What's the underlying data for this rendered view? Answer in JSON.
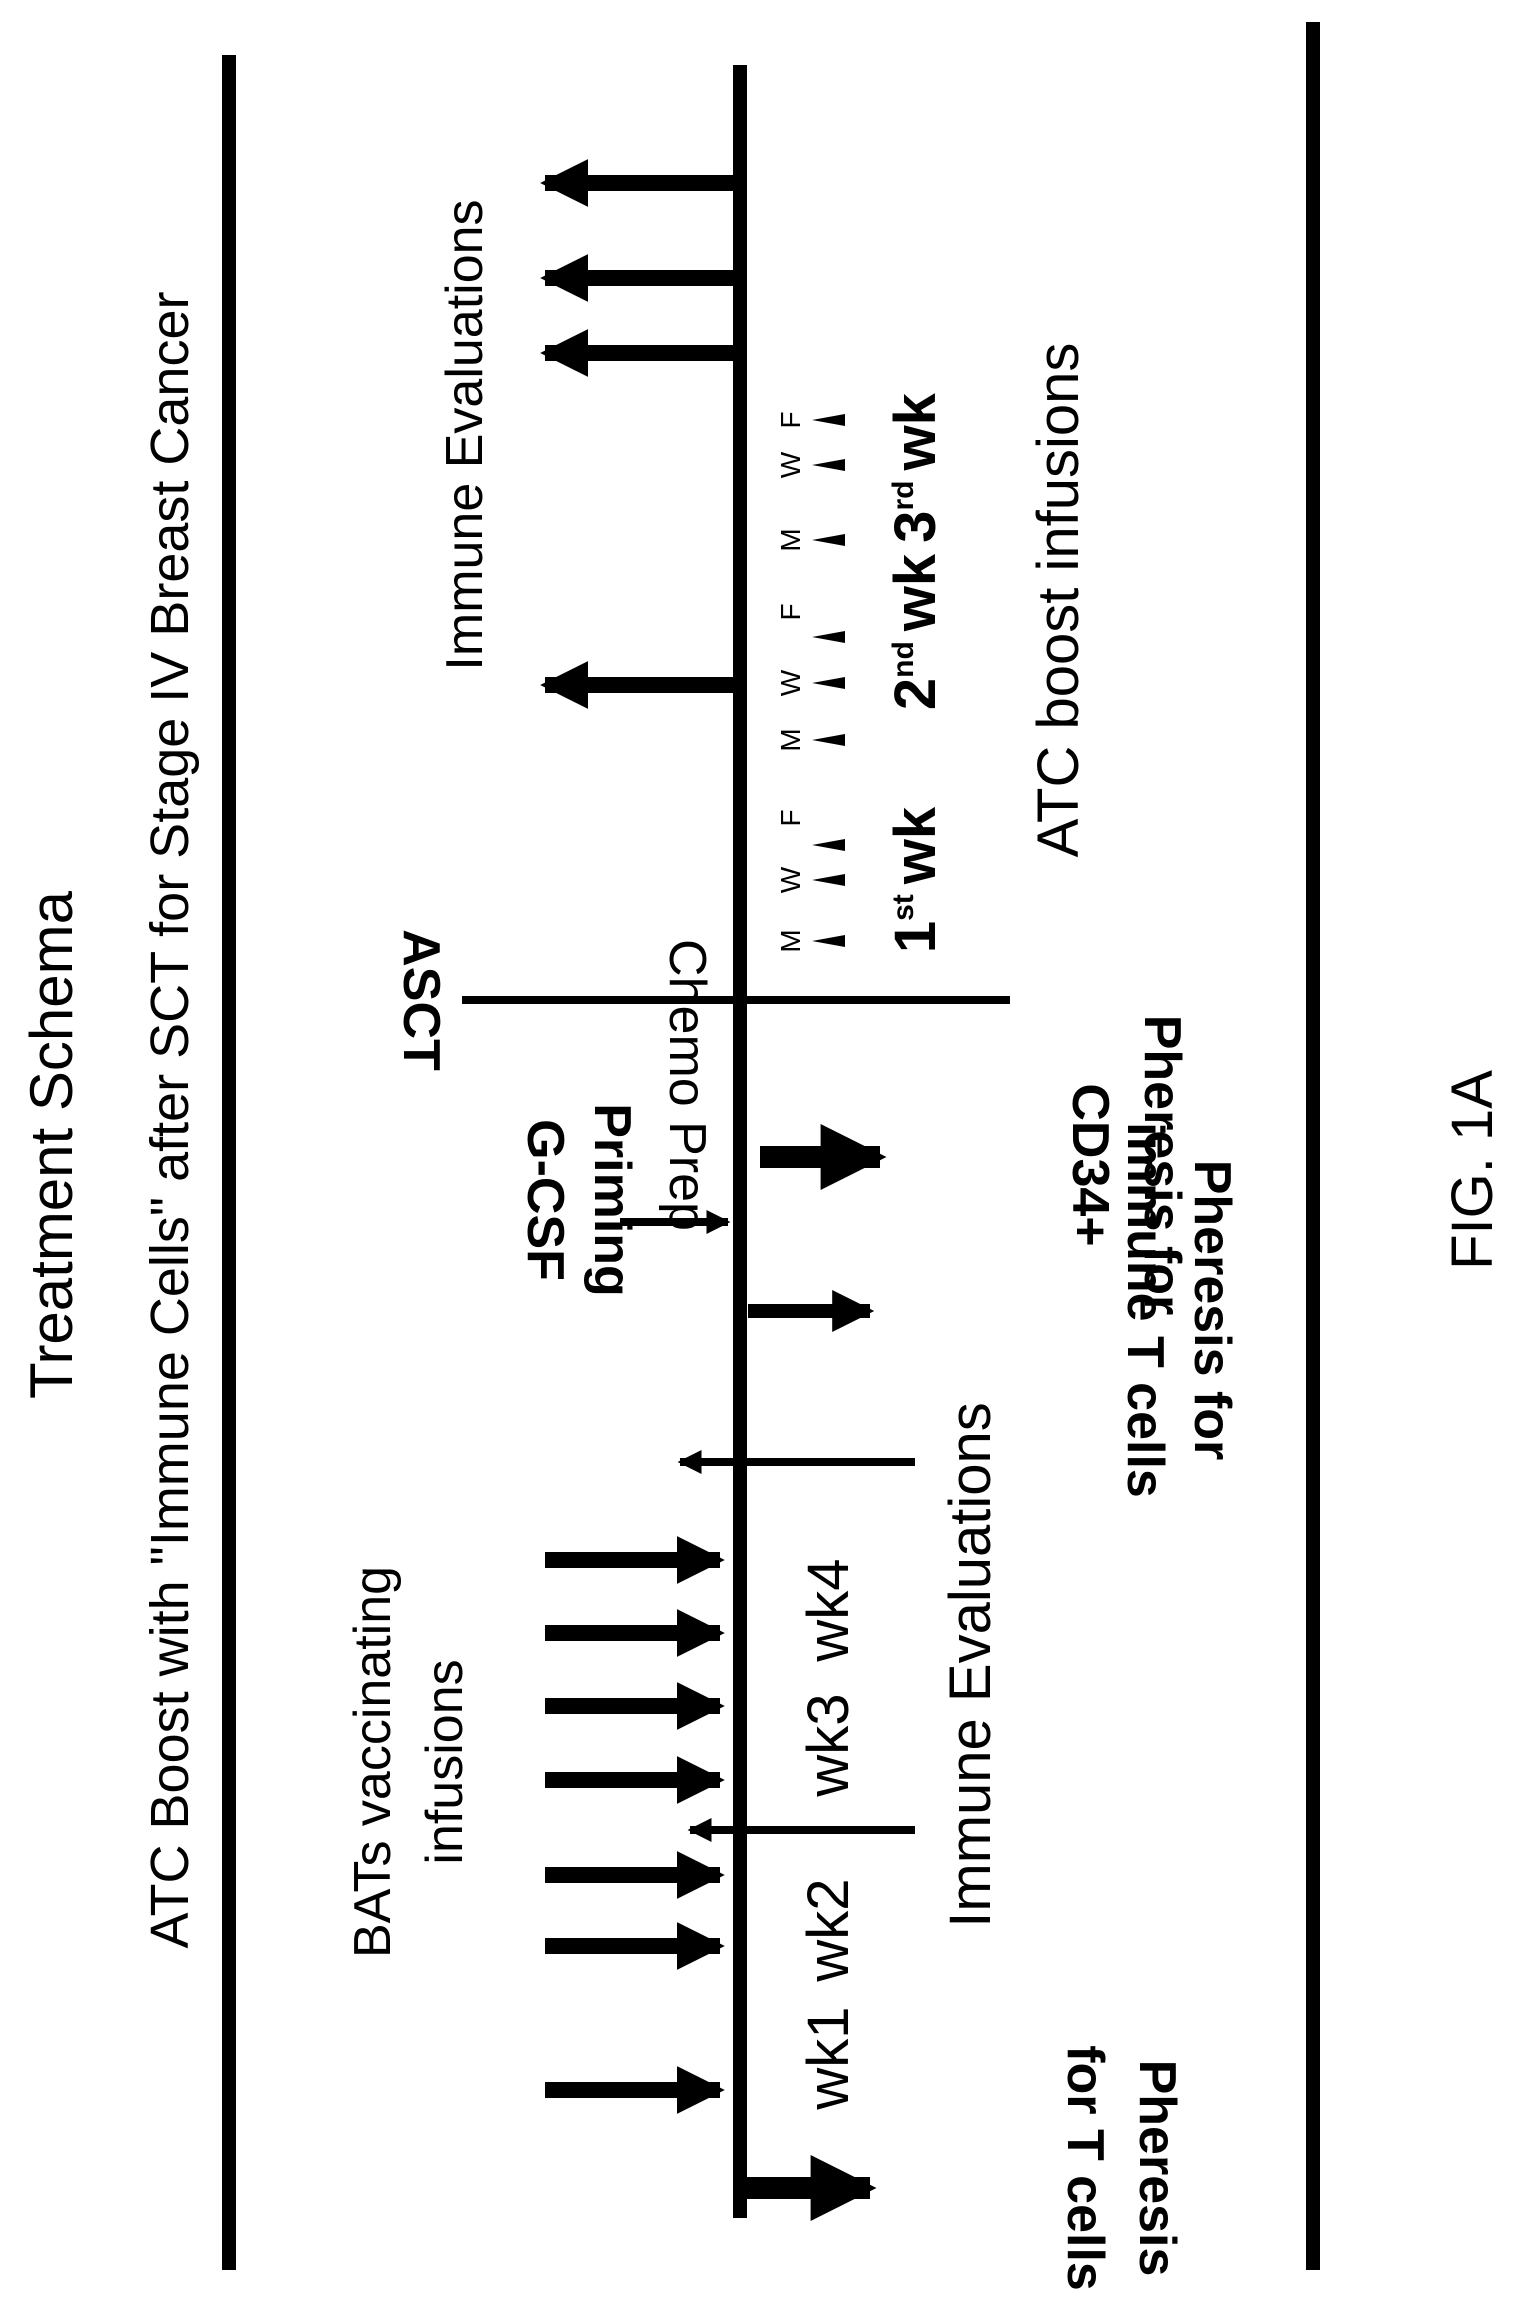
{
  "title": "Treatment Schema",
  "subtitle": "ATC Boost with \"Immune Cells\" after SCT for Stage IV Breast Cancer",
  "figure_label": "FIG. 1A",
  "pheresis_t_cells": {
    "line1": "Pheresis",
    "line2": "for T cells"
  },
  "bats_label": {
    "line1": "BATs vaccinating",
    "line2": "infusions"
  },
  "weeks": [
    "wk1",
    "wk2",
    "wk3",
    "wk4"
  ],
  "immune_eval_lower": "Immune Evaluations",
  "pheresis_immune": {
    "line1": "Pheresis for",
    "line2": "immune   T cells"
  },
  "gcsf": {
    "line1": "G-CSF",
    "line2": "Priming"
  },
  "pheresis_cd34": {
    "line1": "Pheresis for",
    "line2": "CD34+"
  },
  "chemo_prep": "Chemo Prep",
  "asct": "ASCT",
  "boost_weeks": [
    {
      "num": "1",
      "sup": "st",
      "unit": "wk"
    },
    {
      "num": "2",
      "sup": "nd",
      "unit": "wk"
    },
    {
      "num": "3",
      "sup": "rd",
      "unit": "wk"
    }
  ],
  "days": {
    "m": "M",
    "w": "W",
    "f": "F"
  },
  "atc_boost": "ATC boost infusions",
  "immune_eval_upper": "Immune Evaluations"
}
